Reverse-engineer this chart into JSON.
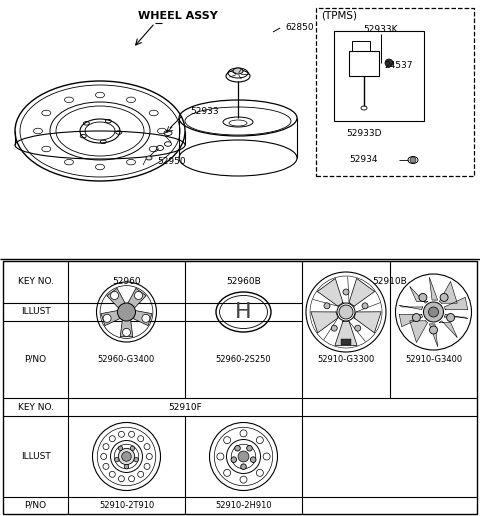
{
  "bg_color": "#ffffff",
  "line_color": "#000000",
  "top_labels": {
    "wheel_assy": "WHEEL ASSY",
    "tpms": "(TPMS)",
    "part_62850": "62850",
    "part_52933": "52933",
    "part_52950": "52950",
    "part_52933K": "52933K",
    "part_24537": "24537",
    "part_52933D": "52933D",
    "part_52934": "52934"
  },
  "pno_row1": [
    "52960-G3400",
    "52960-2S250",
    "52910-G3300",
    "52910-G3400"
  ],
  "pno_row2": [
    "52910-2T910",
    "52910-2H910"
  ],
  "key_no_row1": [
    "52960",
    "52960B",
    "52910B"
  ],
  "key_no_row2": "52910F",
  "row_labels": [
    "KEY NO.",
    "ILLUST",
    "P/NO"
  ],
  "font_size_label": 6.5,
  "font_size_table": 6.5,
  "font_size_bold": 7.5
}
